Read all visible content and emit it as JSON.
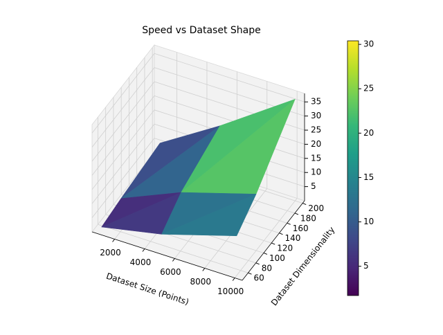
{
  "chart_data": {
    "type": "surface3d",
    "title": "Speed vs Dataset Shape",
    "xlabel": "Dataset Size (Points)",
    "ylabel": "Dataset Dimensionality",
    "x": [
      1000,
      5000,
      10000
    ],
    "y": [
      50,
      100,
      200
    ],
    "z": [
      [
        1.7,
        6,
        14
      ],
      [
        3,
        12,
        20
      ],
      [
        5,
        18,
        36
      ]
    ],
    "xlim": [
      500,
      10500
    ],
    "ylim": [
      45,
      205
    ],
    "zlim": [
      0,
      38
    ],
    "xticks": [
      2000,
      4000,
      6000,
      8000,
      10000
    ],
    "yticks": [
      60,
      80,
      100,
      120,
      140,
      160,
      180,
      200
    ],
    "zticks": [
      5,
      10,
      15,
      20,
      25,
      30,
      35
    ],
    "colormap": "viridis",
    "clim": [
      1.7,
      30.4
    ],
    "colorbar_ticks": [
      5,
      10,
      15,
      20,
      25,
      30
    ],
    "grid": true
  }
}
